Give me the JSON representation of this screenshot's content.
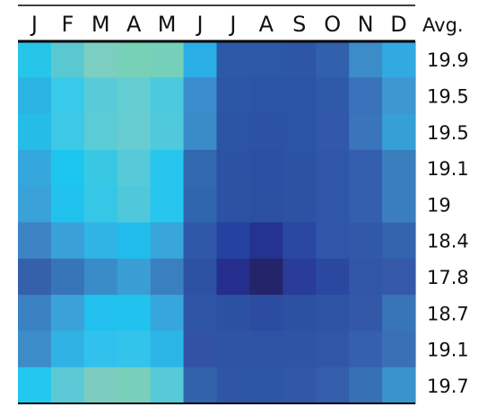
{
  "chart_data": {
    "type": "heatmap",
    "title": "",
    "xlabel": "",
    "ylabel": "",
    "columns": [
      "J",
      "F",
      "M",
      "A",
      "M",
      "J",
      "J",
      "A",
      "S",
      "O",
      "N",
      "D"
    ],
    "avg_header": "Avg.",
    "row_avgs": [
      "19.9",
      "19.5",
      "19.5",
      "19.1",
      "19",
      "18.4",
      "17.8",
      "18.7",
      "19.1",
      "19.7"
    ],
    "colors": [
      [
        "#26c6e8",
        "#5ac8d0",
        "#7ccfc0",
        "#76d1b6",
        "#74d0b8",
        "#2aaee6",
        "#2c5aa8",
        "#2c58a8",
        "#2d56a6",
        "#3160ac",
        "#3c8cc8",
        "#31aae2"
      ],
      [
        "#2bb4e3",
        "#39c9ea",
        "#59cbd8",
        "#63cdd2",
        "#4bc9df",
        "#3b8ccc",
        "#2c56a6",
        "#2b54a6",
        "#2c54a6",
        "#2f5aaa",
        "#3972ba",
        "#3d98d0"
      ],
      [
        "#26bce8",
        "#3cc8e6",
        "#5bcbd6",
        "#66ccd0",
        "#50c9dc",
        "#3a8cc8",
        "#2c54a4",
        "#2b52a4",
        "#2c54a6",
        "#3158aa",
        "#3a74ba",
        "#36a0d6"
      ],
      [
        "#34a8dc",
        "#1dc6ef",
        "#38c8e4",
        "#56cad8",
        "#26c6ee",
        "#3168b0",
        "#2c52a3",
        "#2b4fa2",
        "#2c52a4",
        "#2f56a8",
        "#345fae",
        "#3a7ebe"
      ],
      [
        "#3aa2d8",
        "#22c2ee",
        "#36c6e6",
        "#4fc8dc",
        "#26c6ee",
        "#3066ae",
        "#2c52a3",
        "#2b50a2",
        "#2c52a4",
        "#2f56a8",
        "#345fae",
        "#3a7ebe"
      ],
      [
        "#3c84c4",
        "#3aa0d8",
        "#2fb4e6",
        "#22bcec",
        "#38a6da",
        "#2f58a8",
        "#2542a0",
        "#23338f",
        "#2a48a2",
        "#2f56a8",
        "#3258a8",
        "#3564ae"
      ],
      [
        "#3560aa",
        "#3874b8",
        "#3a8cc8",
        "#3a9ed4",
        "#3a80c0",
        "#2d52a4",
        "#252e8c",
        "#24246a",
        "#283c98",
        "#2a48a0",
        "#3156a8",
        "#3658a8"
      ],
      [
        "#3a82c2",
        "#3aa2d8",
        "#22c0ee",
        "#22c2ee",
        "#36a6dc",
        "#2f56a6",
        "#2c50a2",
        "#2b4ca0",
        "#2c50a2",
        "#2f54a6",
        "#3458a8",
        "#3774b8"
      ],
      [
        "#3c8cc8",
        "#30b2e4",
        "#30c2ec",
        "#32c4ea",
        "#2cb6e8",
        "#3252a6",
        "#2f54a6",
        "#2e52a4",
        "#2f54a6",
        "#3156a8",
        "#3460ae",
        "#3a70b6"
      ],
      [
        "#22c8f0",
        "#5ccad6",
        "#7ccdc0",
        "#78cfba",
        "#56cad8",
        "#3362ac",
        "#2f56a6",
        "#2e56a6",
        "#3158a8",
        "#345eac",
        "#3870b4",
        "#3a94cc"
      ]
    ]
  }
}
